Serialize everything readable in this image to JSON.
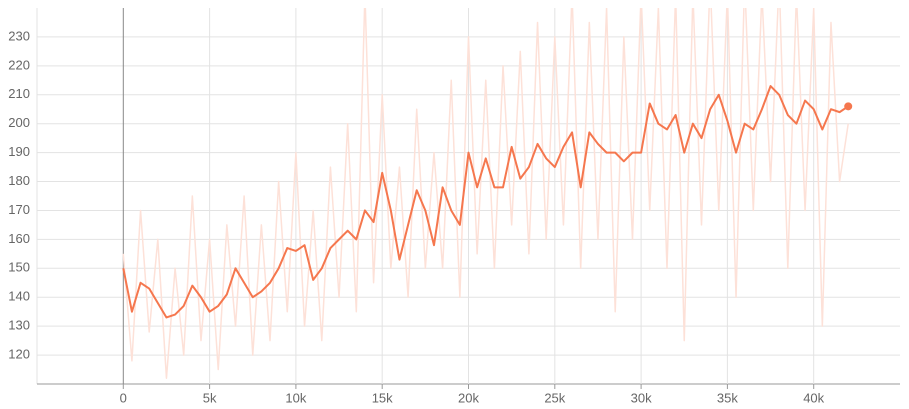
{
  "chart_data": {
    "type": "line",
    "x": [
      0,
      500,
      1000,
      1500,
      2000,
      2500,
      3000,
      3500,
      4000,
      4500,
      5000,
      5500,
      6000,
      6500,
      7000,
      7500,
      8000,
      8500,
      9000,
      9500,
      10000,
      10500,
      11000,
      11500,
      12000,
      12500,
      13000,
      13500,
      14000,
      14500,
      15000,
      15500,
      16000,
      16500,
      17000,
      17500,
      18000,
      18500,
      19000,
      19500,
      20000,
      20500,
      21000,
      21500,
      22000,
      22500,
      23000,
      23500,
      24000,
      24500,
      25000,
      25500,
      26000,
      26500,
      27000,
      27500,
      28000,
      28500,
      29000,
      29500,
      30000,
      30500,
      31000,
      31500,
      32000,
      32500,
      33000,
      33500,
      34000,
      34500,
      35000,
      35500,
      36000,
      36500,
      37000,
      37500,
      38000,
      38500,
      39000,
      39500,
      40000,
      40500,
      41000,
      41500,
      42000
    ],
    "series": [
      {
        "color": "#fde1d8",
        "values": [
          155,
          118,
          170,
          128,
          160,
          112,
          150,
          120,
          175,
          125,
          160,
          115,
          165,
          130,
          175,
          120,
          165,
          125,
          180,
          135,
          190,
          130,
          170,
          125,
          185,
          140,
          200,
          135,
          245,
          145,
          210,
          150,
          185,
          140,
          205,
          150,
          190,
          150,
          215,
          140,
          230,
          155,
          215,
          150,
          220,
          165,
          225,
          155,
          235,
          160,
          230,
          165,
          245,
          150,
          235,
          160,
          240,
          135,
          230,
          160,
          245,
          170,
          240,
          150,
          245,
          125,
          245,
          165,
          250,
          170,
          245,
          140,
          250,
          170,
          245,
          180,
          250,
          150,
          245,
          170,
          240,
          130,
          235,
          180,
          200
        ]
      },
      {
        "color": "#f5774e",
        "values": [
          150,
          135,
          145,
          143,
          138,
          133,
          134,
          137,
          144,
          140,
          135,
          137,
          141,
          150,
          145,
          140,
          142,
          145,
          150,
          157,
          156,
          158,
          146,
          150,
          157,
          160,
          163,
          160,
          170,
          166,
          183,
          170,
          153,
          165,
          177,
          170,
          158,
          178,
          170,
          165,
          190,
          178,
          188,
          178,
          178,
          192,
          181,
          185,
          193,
          188,
          185,
          192,
          197,
          178,
          197,
          193,
          190,
          190,
          187,
          190,
          190,
          207,
          200,
          198,
          203,
          190,
          200,
          195,
          205,
          210,
          201,
          190,
          200,
          198,
          205,
          213,
          210,
          203,
          200,
          208,
          205,
          198,
          205,
          204,
          206
        ]
      }
    ],
    "xlim": [
      -5000,
      45000
    ],
    "ylim": [
      110,
      240
    ],
    "xticks": [
      {
        "value": 0,
        "label": "0"
      },
      {
        "value": 5000,
        "label": "5k"
      },
      {
        "value": 10000,
        "label": "10k"
      },
      {
        "value": 15000,
        "label": "15k"
      },
      {
        "value": 20000,
        "label": "20k"
      },
      {
        "value": 25000,
        "label": "25k"
      },
      {
        "value": 30000,
        "label": "30k"
      },
      {
        "value": 35000,
        "label": "35k"
      },
      {
        "value": 40000,
        "label": "40k"
      }
    ],
    "yticks": [
      120,
      130,
      140,
      150,
      160,
      170,
      180,
      190,
      200,
      210,
      220,
      230
    ],
    "grid": true
  }
}
